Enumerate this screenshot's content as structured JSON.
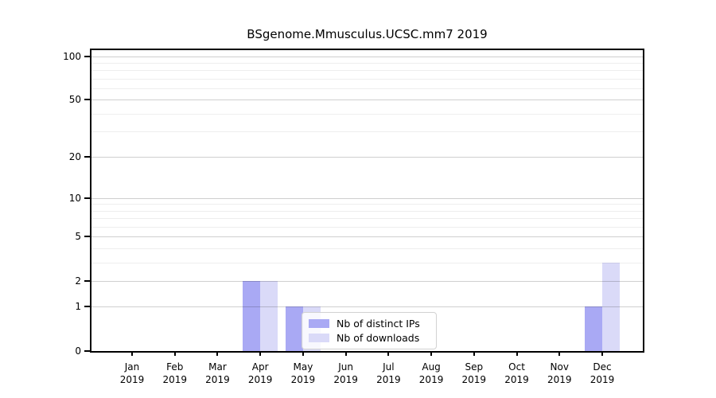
{
  "chart_data": {
    "type": "bar",
    "title": "BSgenome.Mmusculus.UCSC.mm7 2019",
    "categories": [
      {
        "month": "Jan",
        "year": "2019"
      },
      {
        "month": "Feb",
        "year": "2019"
      },
      {
        "month": "Mar",
        "year": "2019"
      },
      {
        "month": "Apr",
        "year": "2019"
      },
      {
        "month": "May",
        "year": "2019"
      },
      {
        "month": "Jun",
        "year": "2019"
      },
      {
        "month": "Jul",
        "year": "2019"
      },
      {
        "month": "Aug",
        "year": "2019"
      },
      {
        "month": "Sep",
        "year": "2019"
      },
      {
        "month": "Oct",
        "year": "2019"
      },
      {
        "month": "Nov",
        "year": "2019"
      },
      {
        "month": "Dec",
        "year": "2019"
      }
    ],
    "series": [
      {
        "name": "Nb of distinct IPs",
        "color": "#a9a9f4",
        "values": [
          0,
          0,
          0,
          2,
          1,
          0,
          0,
          0,
          0,
          0,
          0,
          1
        ]
      },
      {
        "name": "Nb of downloads",
        "color": "#dadaf8",
        "values": [
          0,
          0,
          0,
          2,
          1,
          0,
          0,
          0,
          0,
          0,
          0,
          3
        ]
      }
    ],
    "yscale": "log1p",
    "ylim": [
      0,
      110
    ],
    "ytick_values": [
      0,
      1,
      2,
      5,
      10,
      20,
      50,
      100
    ],
    "major_gridline_values": [
      1,
      2,
      5,
      10,
      20,
      50,
      100
    ],
    "minor_gridline_values": [
      3,
      4,
      6,
      7,
      8,
      9,
      30,
      40,
      60,
      70,
      80,
      90
    ],
    "grid": true,
    "legend_position": "inside-bottom-center"
  },
  "colors": {
    "background": "#ffffff",
    "axis_line": "#000000",
    "text": "#000000",
    "grid_major": "rgba(0,0,0,0.19)",
    "grid_minor": "rgba(0,0,0,0.065)",
    "legend_border": "#d2d2d2",
    "distinct_ips_bar": "#a9a9f4",
    "downloads_bar": "#dadaf8"
  }
}
